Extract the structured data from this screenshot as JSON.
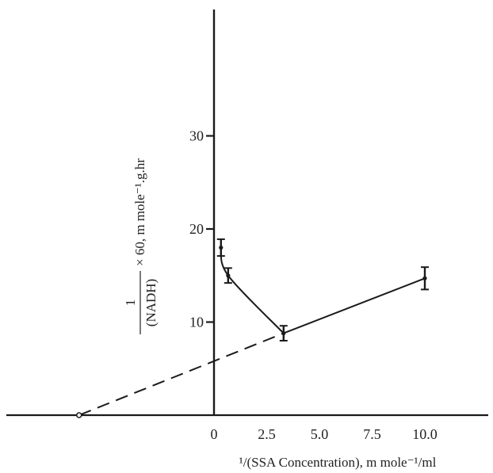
{
  "chart_data": {
    "type": "line",
    "title": "",
    "xlabel": "¹/(SSA Concentration), m mole⁻¹/ml",
    "ylabel": {
      "numerator": "1",
      "denominator": "(NADH)",
      "suffix": "× 60, m mole⁻¹.g.hr"
    },
    "xlim": [
      -7.8,
      11.3
    ],
    "ylim": [
      0,
      43
    ],
    "x_ticks": [
      0,
      2.5,
      5.0,
      7.5,
      10.0
    ],
    "x_tick_labels": [
      "0",
      "2.5",
      "5.0",
      "7.5",
      "10.0"
    ],
    "y_ticks": [
      10,
      20,
      30
    ],
    "y_tick_labels": [
      "10",
      "20",
      "30"
    ],
    "grid": false,
    "series": [
      {
        "style": "curve-with-error-bars",
        "points": [
          {
            "x": 0.33,
            "y": 18.0,
            "err": 0.9
          },
          {
            "x": 0.67,
            "y": 15.0,
            "err": 0.8
          },
          {
            "x": 3.3,
            "y": 8.8,
            "err": 0.8
          },
          {
            "x": 10.0,
            "y": 14.7,
            "err": 1.2
          }
        ]
      },
      {
        "style": "extrapolated-dashed",
        "points": [
          {
            "x": -6.4,
            "y": 0
          },
          {
            "x": 3.3,
            "y": 8.8
          }
        ]
      }
    ]
  }
}
